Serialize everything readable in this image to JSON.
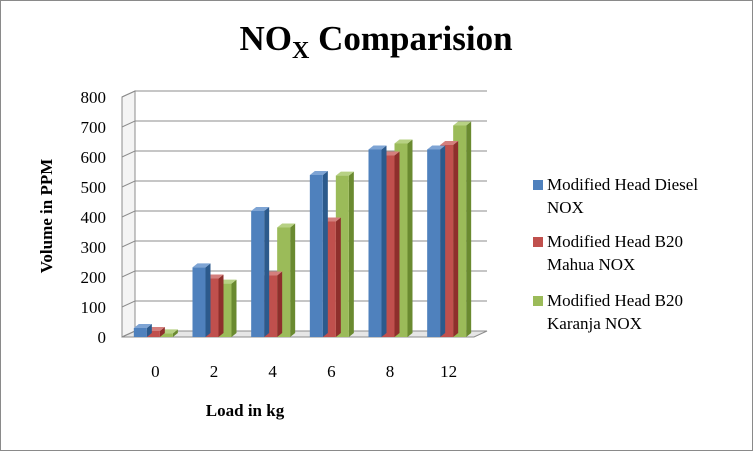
{
  "chart_data": {
    "type": "bar",
    "title": "NOX Comparision",
    "title_main_prefix": "NO",
    "title_sub": "X",
    "title_main_suffix": " Comparision",
    "xlabel": "Load in kg",
    "ylabel": "Volume in PPM",
    "categories": [
      "0",
      "2",
      "4",
      "6",
      "8",
      "12"
    ],
    "ylim": [
      0,
      800
    ],
    "yticks": [
      0,
      100,
      200,
      300,
      400,
      500,
      600,
      700,
      800
    ],
    "grid": true,
    "legend_position": "right",
    "series": [
      {
        "name": "Modified Head Diesel NOX",
        "legend_lines": [
          "Modified Head Diesel",
          "NOX"
        ],
        "values": [
          30,
          232,
          420,
          540,
          625,
          625
        ],
        "color": "#4f81bd",
        "dark": "#2c5a8c",
        "top": "#7ea4d4"
      },
      {
        "name": "Modified Head B20 Mahua NOX",
        "legend_lines": [
          "Modified Head B20",
          "Mahua NOX"
        ],
        "values": [
          20,
          195,
          205,
          385,
          605,
          640
        ],
        "color": "#c0504d",
        "dark": "#8e2f2c",
        "top": "#d47f7d"
      },
      {
        "name": "Modified Head B20 Karanja NOX",
        "legend_lines": [
          "Modified Head B20",
          "Karanja NOX"
        ],
        "values": [
          12,
          178,
          365,
          538,
          645,
          705
        ],
        "color": "#9bbb59",
        "dark": "#6a8a30",
        "top": "#b7d184"
      }
    ]
  }
}
